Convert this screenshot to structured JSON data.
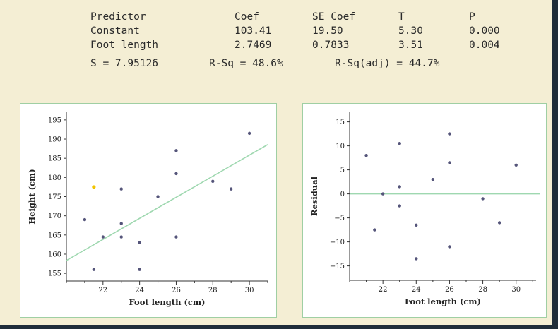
{
  "regression_output": {
    "headers": [
      "Predictor",
      "Coef",
      "SE Coef",
      "T",
      "P"
    ],
    "rows": [
      [
        "Constant",
        "103.41",
        "19.50",
        "5.30",
        "0.000"
      ],
      [
        "Foot length",
        "2.7469",
        "0.7833",
        "3.51",
        "0.004"
      ]
    ],
    "s": "S = 7.95126",
    "rsq": "R-Sq = 48.6%",
    "rsq_adj": "R-Sq(adj) = 44.7%"
  },
  "colors": {
    "background": "#f4eed4",
    "panel_border": "#9fcfa3",
    "fit_line": "#9fd8b0",
    "point": "#55557a",
    "highlight_point": "#f2c400"
  },
  "chart_data": [
    {
      "type": "scatter",
      "xlabel": "Foot length (cm)",
      "ylabel": "Height (cm)",
      "xlim": [
        20,
        31
      ],
      "ylim": [
        153,
        197
      ],
      "xticks": [
        22,
        24,
        26,
        28,
        30
      ],
      "yticks": [
        155,
        160,
        165,
        170,
        175,
        180,
        185,
        190,
        195
      ],
      "grid": false,
      "x": [
        21,
        21.5,
        21.5,
        22,
        23,
        23,
        23,
        24,
        24,
        25,
        26,
        26,
        26,
        28,
        29,
        30
      ],
      "y": [
        169,
        156,
        177.5,
        164.5,
        177,
        168,
        164.5,
        163,
        156,
        175,
        187,
        181,
        164.5,
        179,
        177,
        191.5
      ],
      "highlight_index": 2,
      "fit_line": {
        "intercept": 103.41,
        "slope": 2.7469
      }
    },
    {
      "type": "scatter",
      "xlabel": "Foot length (cm)",
      "ylabel": "Residual",
      "xlim": [
        20,
        31.2
      ],
      "ylim": [
        -18,
        17
      ],
      "xticks": [
        22,
        24,
        26,
        28,
        30
      ],
      "yticks": [
        -15,
        -10,
        -5,
        0,
        5,
        10,
        15
      ],
      "grid": false,
      "x": [
        21,
        21.5,
        22,
        23,
        23,
        23,
        24,
        24,
        25,
        26,
        26,
        26,
        28,
        29,
        30
      ],
      "y": [
        8,
        -7.5,
        0,
        10.5,
        1.5,
        -2.5,
        -6.5,
        -13.5,
        3,
        12.5,
        6.5,
        -11,
        -1,
        -6,
        6
      ],
      "reference_line": 0
    }
  ]
}
